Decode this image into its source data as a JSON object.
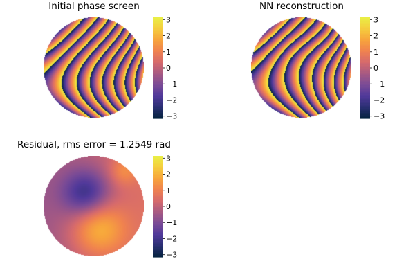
{
  "chart_data": [
    {
      "type": "heatmap",
      "title": "Initial phase screen",
      "pattern": "wrapped-phase",
      "colorbar": {
        "ticks": [
          "3",
          "2",
          "1",
          "0",
          "−1",
          "−2",
          "−3"
        ],
        "range": [
          -3.1416,
          3.1416
        ],
        "colormap": "thermal"
      }
    },
    {
      "type": "heatmap",
      "title": "NN reconstruction",
      "pattern": "wrapped-phase-reconstruction",
      "colorbar": {
        "ticks": [
          "3",
          "2",
          "1",
          "0",
          "−1",
          "−2",
          "−3"
        ],
        "range": [
          -3.1416,
          3.1416
        ],
        "colormap": "thermal"
      }
    },
    {
      "type": "heatmap",
      "title": "Residual, rms error = 1.2549 rad",
      "pattern": "smooth-residual",
      "colorbar": {
        "ticks": [
          "3",
          "2",
          "1",
          "0",
          "−1",
          "−2",
          "−3"
        ],
        "range": [
          -3.1416,
          3.1416
        ],
        "colormap": "thermal"
      }
    }
  ],
  "colors": {
    "thermal": [
      "#04233e",
      "#2a2f73",
      "#51399a",
      "#7a4b96",
      "#a85a82",
      "#d66a6c",
      "#f0824f",
      "#f7a53c",
      "#f5cd3e",
      "#e9f045"
    ]
  }
}
